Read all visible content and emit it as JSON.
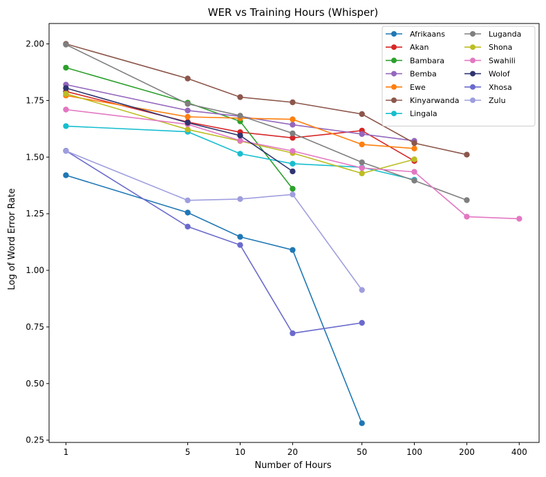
{
  "chart_data": {
    "type": "line",
    "title": "WER vs Training Hours (Whisper)",
    "xlabel": "Number of Hours",
    "ylabel": "Log of Word Error Rate",
    "xscale": "log",
    "xlim": [
      0.8,
      520
    ],
    "ylim": [
      0.24,
      2.09
    ],
    "xticks": [
      1,
      5,
      10,
      20,
      50,
      100,
      200,
      400
    ],
    "xtick_labels": [
      "1",
      "5",
      "10",
      "20",
      "50",
      "100",
      "200",
      "400"
    ],
    "yticks": [
      0.25,
      0.5,
      0.75,
      1.0,
      1.25,
      1.5,
      1.75,
      2.0
    ],
    "ytick_labels": [
      "0.25",
      "0.50",
      "0.75",
      "1.00",
      "1.25",
      "1.50",
      "1.75",
      "2.00"
    ],
    "legend_position": "top-right",
    "legend_columns": 2,
    "series": [
      {
        "name": "Afrikaans",
        "color": "#1f77b4",
        "x": [
          1,
          5,
          10,
          20,
          50
        ],
        "y": [
          1.42,
          1.255,
          1.148,
          1.09,
          0.325
        ]
      },
      {
        "name": "Akan",
        "color": "#d62728",
        "x": [
          1,
          5,
          10,
          20,
          50,
          100
        ],
        "y": [
          1.79,
          1.655,
          1.61,
          1.585,
          1.617,
          1.483
        ]
      },
      {
        "name": "Bambara",
        "color": "#2ca02c",
        "x": [
          1,
          5,
          10,
          20
        ],
        "y": [
          1.895,
          1.74,
          1.658,
          1.36
        ]
      },
      {
        "name": "Bemba",
        "color": "#9467bd",
        "x": [
          1,
          5,
          10,
          20,
          50,
          100
        ],
        "y": [
          1.82,
          1.706,
          1.68,
          1.643,
          1.602,
          1.572
        ]
      },
      {
        "name": "Ewe",
        "color": "#ff7f0e",
        "x": [
          1,
          5,
          10,
          20,
          50,
          100
        ],
        "y": [
          1.772,
          1.678,
          1.672,
          1.667,
          1.556,
          1.538
        ]
      },
      {
        "name": "Kinyarwanda",
        "color": "#8c564b",
        "x": [
          1,
          5,
          10,
          20,
          50,
          100,
          200
        ],
        "y": [
          2.0,
          1.847,
          1.765,
          1.742,
          1.69,
          1.562,
          1.511
        ]
      },
      {
        "name": "Lingala",
        "color": "#17becf",
        "x": [
          1,
          5,
          10,
          20,
          50,
          100
        ],
        "y": [
          1.637,
          1.612,
          1.515,
          1.471,
          1.455,
          1.4
        ]
      },
      {
        "name": "Luganda",
        "color": "#7f7f7f",
        "x": [
          1,
          5,
          10,
          20,
          50,
          100,
          200
        ],
        "y": [
          1.997,
          1.735,
          1.683,
          1.605,
          1.477,
          1.396,
          1.31
        ]
      },
      {
        "name": "Shona",
        "color": "#bcbd22",
        "x": [
          1,
          5,
          10,
          20,
          50,
          100
        ],
        "y": [
          1.78,
          1.622,
          1.571,
          1.518,
          1.428,
          1.49
        ]
      },
      {
        "name": "Swahili",
        "color": "#e377c2",
        "x": [
          1,
          5,
          10,
          20,
          50,
          100,
          200,
          400
        ],
        "y": [
          1.71,
          1.645,
          1.573,
          1.527,
          1.452,
          1.435,
          1.237,
          1.228
        ]
      },
      {
        "name": "Wolof",
        "color": "#2f3470",
        "x": [
          1,
          5,
          10,
          20
        ],
        "y": [
          1.805,
          1.652,
          1.595,
          1.437
        ]
      },
      {
        "name": "Xhosa",
        "color": "#6a6acd",
        "x": [
          1,
          5,
          10,
          20,
          50
        ],
        "y": [
          1.528,
          1.193,
          1.112,
          0.722,
          0.768
        ]
      },
      {
        "name": "Zulu",
        "color": "#9e9ede",
        "x": [
          1,
          5,
          10,
          20,
          50
        ],
        "y": [
          1.527,
          1.309,
          1.315,
          1.335,
          0.913
        ]
      }
    ]
  }
}
